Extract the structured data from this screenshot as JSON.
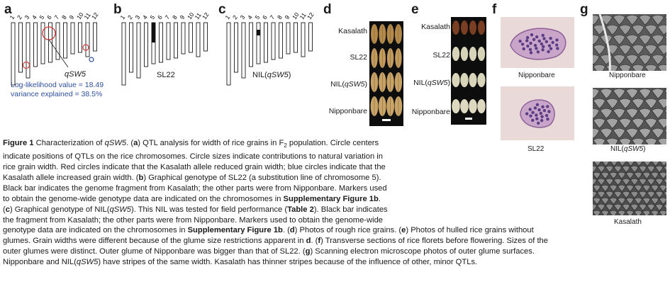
{
  "panels": {
    "a": {
      "letter": "a",
      "chromosome_numbers": [
        "1",
        "2",
        "3",
        "4",
        "5",
        "6",
        "7",
        "8",
        "9",
        "10",
        "11",
        "12"
      ],
      "qtl_name": "qSW5",
      "loglik": "Log-likelihood value = 18.49",
      "variance": "variance explained = 38.5%"
    },
    "b": {
      "letter": "b",
      "chromosome_numbers": [
        "1",
        "2",
        "3",
        "4",
        "5",
        "6",
        "7",
        "8",
        "9",
        "10",
        "11",
        "12"
      ],
      "label": "SL22"
    },
    "c": {
      "letter": "c",
      "chromosome_numbers": [
        "1",
        "2",
        "3",
        "4",
        "5",
        "6",
        "7",
        "8",
        "9",
        "10",
        "11",
        "12"
      ],
      "label_prefix": "NIL(",
      "label_italic": "qSW5",
      "label_suffix": ")"
    },
    "d": {
      "letter": "d",
      "rows": [
        {
          "label": "Kasalath"
        },
        {
          "label": "SL22"
        },
        {
          "label_prefix": "NIL(",
          "label_italic": "qSW5",
          "label_suffix": ")"
        },
        {
          "label": "Nipponbare"
        }
      ]
    },
    "e": {
      "letter": "e",
      "rows": [
        {
          "label": "Kasalath"
        },
        {
          "label": "SL22"
        },
        {
          "label_prefix": "NIL(",
          "label_italic": "qSW5",
          "label_suffix": ")"
        },
        {
          "label": "Nipponbare"
        }
      ]
    },
    "f": {
      "letter": "f",
      "labels": [
        "Nipponbare",
        "SL22"
      ]
    },
    "g": {
      "letter": "g",
      "labels": [
        "Nipponbare",
        "NIL(qSW5)",
        "Kasalath"
      ],
      "label2_prefix": "NIL(",
      "label2_italic": "qSW5",
      "label2_suffix": ")"
    }
  },
  "colors": {
    "red_circle": "#d43a3a",
    "blue_circle": "#2e4f9e",
    "text_blue": "#2e4f9e"
  },
  "caption": {
    "lines": [
      [
        {
          "t": "Figure 1",
          "b": true
        },
        {
          "t": "  Characterization of "
        },
        {
          "t": "qSW5",
          "i": true
        },
        {
          "t": ". ("
        },
        {
          "t": "a",
          "b": true
        },
        {
          "t": ") QTL analysis for width of rice grains in F"
        },
        {
          "t": "2",
          "sub": true
        },
        {
          "t": " population. Circle centers"
        }
      ],
      [
        {
          "t": "indicate positions of QTLs on the rice chromosomes. Circle sizes indicate contributions to natural variation in"
        }
      ],
      [
        {
          "t": "rice grain width. Red circles indicate that the Kasalath allele reduced grain width; blue circles indicate that the"
        }
      ],
      [
        {
          "t": "Kasalath allele increased grain width. ("
        },
        {
          "t": "b",
          "b": true
        },
        {
          "t": ") Graphical genotype of SL22 (a substitution line of chromosome 5)."
        }
      ],
      [
        {
          "t": "Black bar indicates the genome fragment from Kasalath; the other parts were from Nipponbare. Markers used"
        }
      ],
      [
        {
          "t": "to obtain the genome-wide genotype data are indicated on the chromosomes in "
        },
        {
          "t": "Supplementary Figure 1b",
          "b": true
        },
        {
          "t": "."
        }
      ],
      [
        {
          "t": "("
        },
        {
          "t": "c",
          "b": true
        },
        {
          "t": ") Graphical genotype of NIL("
        },
        {
          "t": "qSW5",
          "i": true
        },
        {
          "t": "). This NIL was tested for field performance ("
        },
        {
          "t": "Table 2",
          "b": true
        },
        {
          "t": "). Black bar indicates"
        }
      ],
      [
        {
          "t": "the fragment from Kasalath; the other parts were from Nipponbare. Markers used to obtain the genome-wide"
        }
      ],
      [
        {
          "t": "genotype data are indicated on the chromosomes in "
        },
        {
          "t": "Supplementary Figure 1b",
          "b": true
        },
        {
          "t": ". ("
        },
        {
          "t": "d",
          "b": true
        },
        {
          "t": ") Photos of rough rice grains. ("
        },
        {
          "t": "e",
          "b": true
        },
        {
          "t": ") Photos of hulled rice grains without"
        }
      ],
      [
        {
          "t": "glumes. Grain widths were different because of the glume size restrictions apparent in "
        },
        {
          "t": "d",
          "b": true
        },
        {
          "t": ". ("
        },
        {
          "t": "f",
          "b": true
        },
        {
          "t": ") Transverse sections of rice florets before flowering. Sizes of the"
        }
      ],
      [
        {
          "t": "outer glumes were distinct. Outer glume of Nipponbare was bigger than that of SL22. ("
        },
        {
          "t": "g",
          "b": true
        },
        {
          "t": ") Scanning electron microscope photos of outer glume surfaces."
        }
      ],
      [
        {
          "t": "Nipponbare and NIL("
        },
        {
          "t": "qSW5",
          "i": true
        },
        {
          "t": ") have stripes of the same width. Kasalath has thinner stripes because of the influence of other, minor QTLs."
        }
      ]
    ]
  }
}
